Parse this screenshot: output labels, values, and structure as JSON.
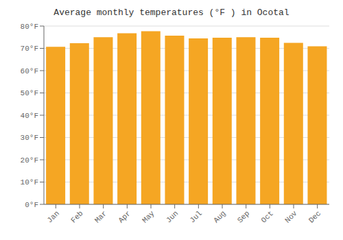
{
  "chart_data": {
    "type": "bar",
    "title": "Average monthly temperatures (°F ) in Ocotal",
    "categories": [
      "Jan",
      "Feb",
      "Mar",
      "Apr",
      "May",
      "Jun",
      "Jul",
      "Aug",
      "Sep",
      "Oct",
      "Nov",
      "Dec"
    ],
    "values": [
      70.7,
      72.3,
      75.0,
      76.8,
      77.7,
      75.7,
      74.5,
      74.8,
      75.0,
      74.8,
      72.5,
      70.9
    ],
    "color": "#F5A623",
    "ylim": [
      0,
      80
    ],
    "yticks": [
      {
        "value": 0,
        "label": "0°F"
      },
      {
        "value": 10,
        "label": "10°F"
      },
      {
        "value": 20,
        "label": "20°F"
      },
      {
        "value": 30,
        "label": "30°F"
      },
      {
        "value": 40,
        "label": "40°F"
      },
      {
        "value": 50,
        "label": "50°F"
      },
      {
        "value": 60,
        "label": "60°F"
      },
      {
        "value": 70,
        "label": "70°F"
      },
      {
        "value": 80,
        "label": "80°F"
      }
    ],
    "grid": true
  }
}
